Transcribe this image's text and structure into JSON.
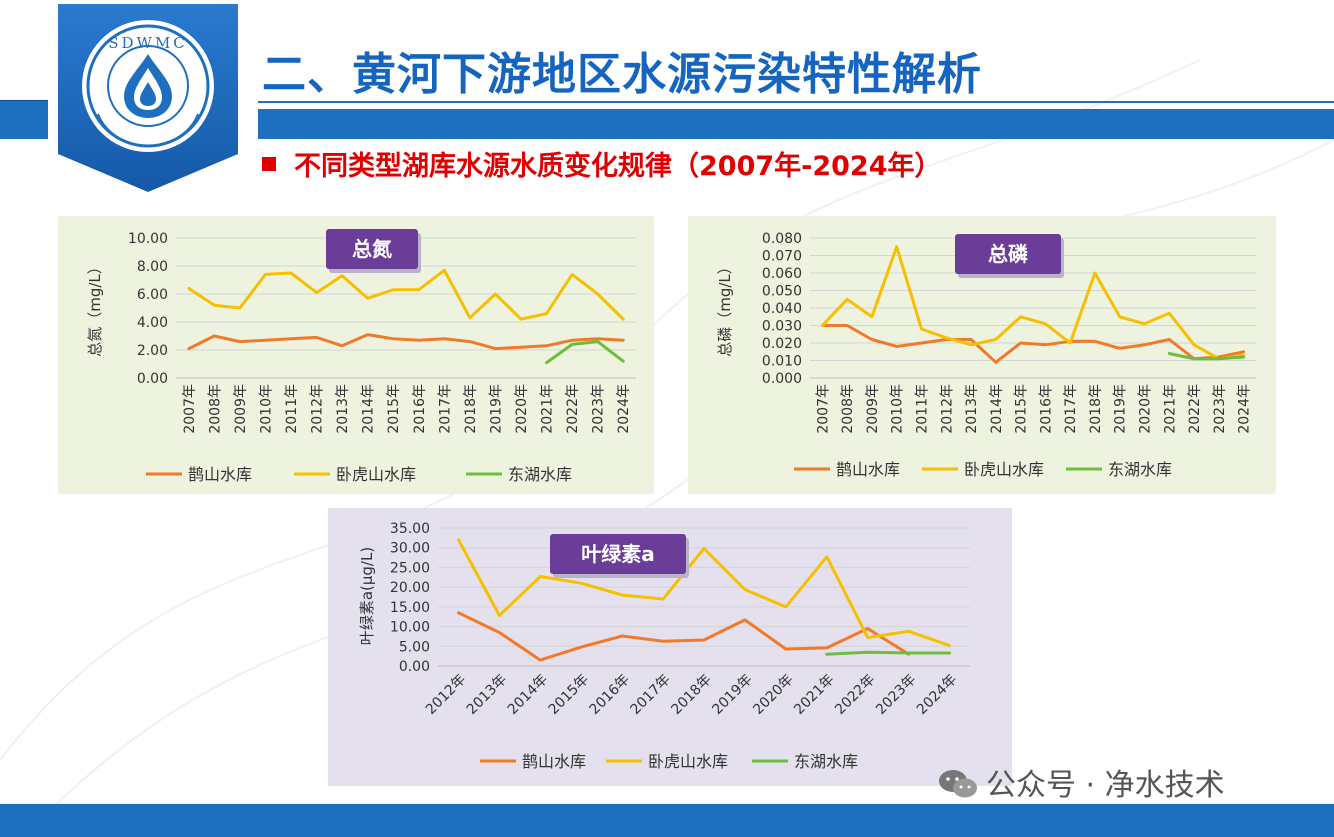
{
  "header": {
    "logo_text": "SDWMC",
    "title": "二、黄河下游地区水源污染特性解析",
    "subtitle": "不同类型湖库水源水质变化规律（2007年-2024年）"
  },
  "watermark": {
    "icon": "wechat-icon",
    "text": "公众号 · 净水技术"
  },
  "colors": {
    "brand_blue": "#1f6fc0",
    "title_blue": "#1565c0",
    "subtitle_red": "#e00000",
    "series_queshan": "#f07a2a",
    "series_wohushan": "#f5c000",
    "series_donghu": "#6cbf3a",
    "badge_purple": "#6a3d99"
  },
  "chart_data": [
    {
      "type": "line",
      "title": "总氮",
      "xlabel": "",
      "ylabel": "总氮（mg/L）",
      "ylim": [
        0,
        10
      ],
      "yticks": [
        "0.00",
        "2.00",
        "4.00",
        "6.00",
        "8.00",
        "10.00"
      ],
      "categories": [
        "2007年",
        "2008年",
        "2009年",
        "2010年",
        "2011年",
        "2012年",
        "2013年",
        "2014年",
        "2015年",
        "2016年",
        "2017年",
        "2018年",
        "2019年",
        "2020年",
        "2021年",
        "2022年",
        "2023年",
        "2024年"
      ],
      "grid": true,
      "legend": "bottom",
      "series": [
        {
          "name": "鹊山水库",
          "values": [
            2.1,
            3.0,
            2.6,
            2.7,
            2.8,
            2.9,
            2.3,
            3.1,
            2.8,
            2.7,
            2.8,
            2.6,
            2.1,
            2.2,
            2.3,
            2.7,
            2.8,
            2.7
          ]
        },
        {
          "name": "卧虎山水库",
          "values": [
            6.4,
            5.2,
            5.0,
            7.4,
            7.5,
            6.1,
            7.3,
            5.7,
            6.3,
            6.3,
            7.7,
            4.3,
            6.0,
            4.2,
            4.6,
            7.4,
            6.0,
            4.2
          ]
        },
        {
          "name": "东湖水库",
          "values": [
            null,
            null,
            null,
            null,
            null,
            null,
            null,
            null,
            null,
            null,
            null,
            null,
            null,
            null,
            1.1,
            2.4,
            2.6,
            1.2
          ]
        }
      ]
    },
    {
      "type": "line",
      "title": "总磷",
      "xlabel": "",
      "ylabel": "总磷（mg/L）",
      "ylim": [
        0,
        0.08
      ],
      "yticks": [
        "0.000",
        "0.010",
        "0.020",
        "0.030",
        "0.040",
        "0.050",
        "0.060",
        "0.070",
        "0.080"
      ],
      "categories": [
        "2007年",
        "2008年",
        "2009年",
        "2010年",
        "2011年",
        "2012年",
        "2013年",
        "2014年",
        "2015年",
        "2016年",
        "2017年",
        "2018年",
        "2019年",
        "2020年",
        "2021年",
        "2022年",
        "2023年",
        "2024年"
      ],
      "grid": true,
      "legend": "bottom",
      "series": [
        {
          "name": "鹊山水库",
          "values": [
            0.03,
            0.03,
            0.022,
            0.018,
            0.02,
            0.022,
            0.022,
            0.009,
            0.02,
            0.019,
            0.021,
            0.021,
            0.017,
            0.019,
            0.022,
            0.011,
            0.012,
            0.015
          ]
        },
        {
          "name": "卧虎山水库",
          "values": [
            0.03,
            0.045,
            0.035,
            0.075,
            0.028,
            0.023,
            0.019,
            0.022,
            0.035,
            0.031,
            0.02,
            0.06,
            0.035,
            0.031,
            0.037,
            0.019,
            0.011,
            0.013
          ]
        },
        {
          "name": "东湖水库",
          "values": [
            null,
            null,
            null,
            null,
            null,
            null,
            null,
            null,
            null,
            null,
            null,
            null,
            null,
            null,
            0.014,
            0.011,
            0.011,
            0.012
          ]
        }
      ]
    },
    {
      "type": "line",
      "title": "叶绿素a",
      "xlabel": "",
      "ylabel": "叶绿素a(μg/L)",
      "ylim": [
        0,
        35
      ],
      "yticks": [
        "0.00",
        "5.00",
        "10.00",
        "15.00",
        "20.00",
        "25.00",
        "30.00",
        "35.00"
      ],
      "categories": [
        "2012年",
        "2013年",
        "2014年",
        "2015年",
        "2016年",
        "2017年",
        "2018年",
        "2019年",
        "2020年",
        "2021年",
        "2022年",
        "2023年",
        "2024年"
      ],
      "grid": true,
      "legend": "bottom",
      "series": [
        {
          "name": "鹊山水库",
          "values": [
            13.5,
            8.5,
            1.5,
            4.8,
            7.6,
            6.3,
            6.6,
            11.7,
            4.3,
            4.6,
            9.5,
            3.0,
            null
          ]
        },
        {
          "name": "卧虎山水库",
          "values": [
            32.0,
            12.8,
            22.7,
            21.0,
            18.0,
            17.0,
            29.8,
            19.4,
            15.0,
            27.7,
            7.2,
            8.8,
            5.2
          ]
        },
        {
          "name": "东湖水库",
          "values": [
            null,
            null,
            null,
            null,
            null,
            null,
            null,
            null,
            null,
            3.0,
            3.5,
            3.3,
            3.3
          ]
        }
      ]
    }
  ]
}
